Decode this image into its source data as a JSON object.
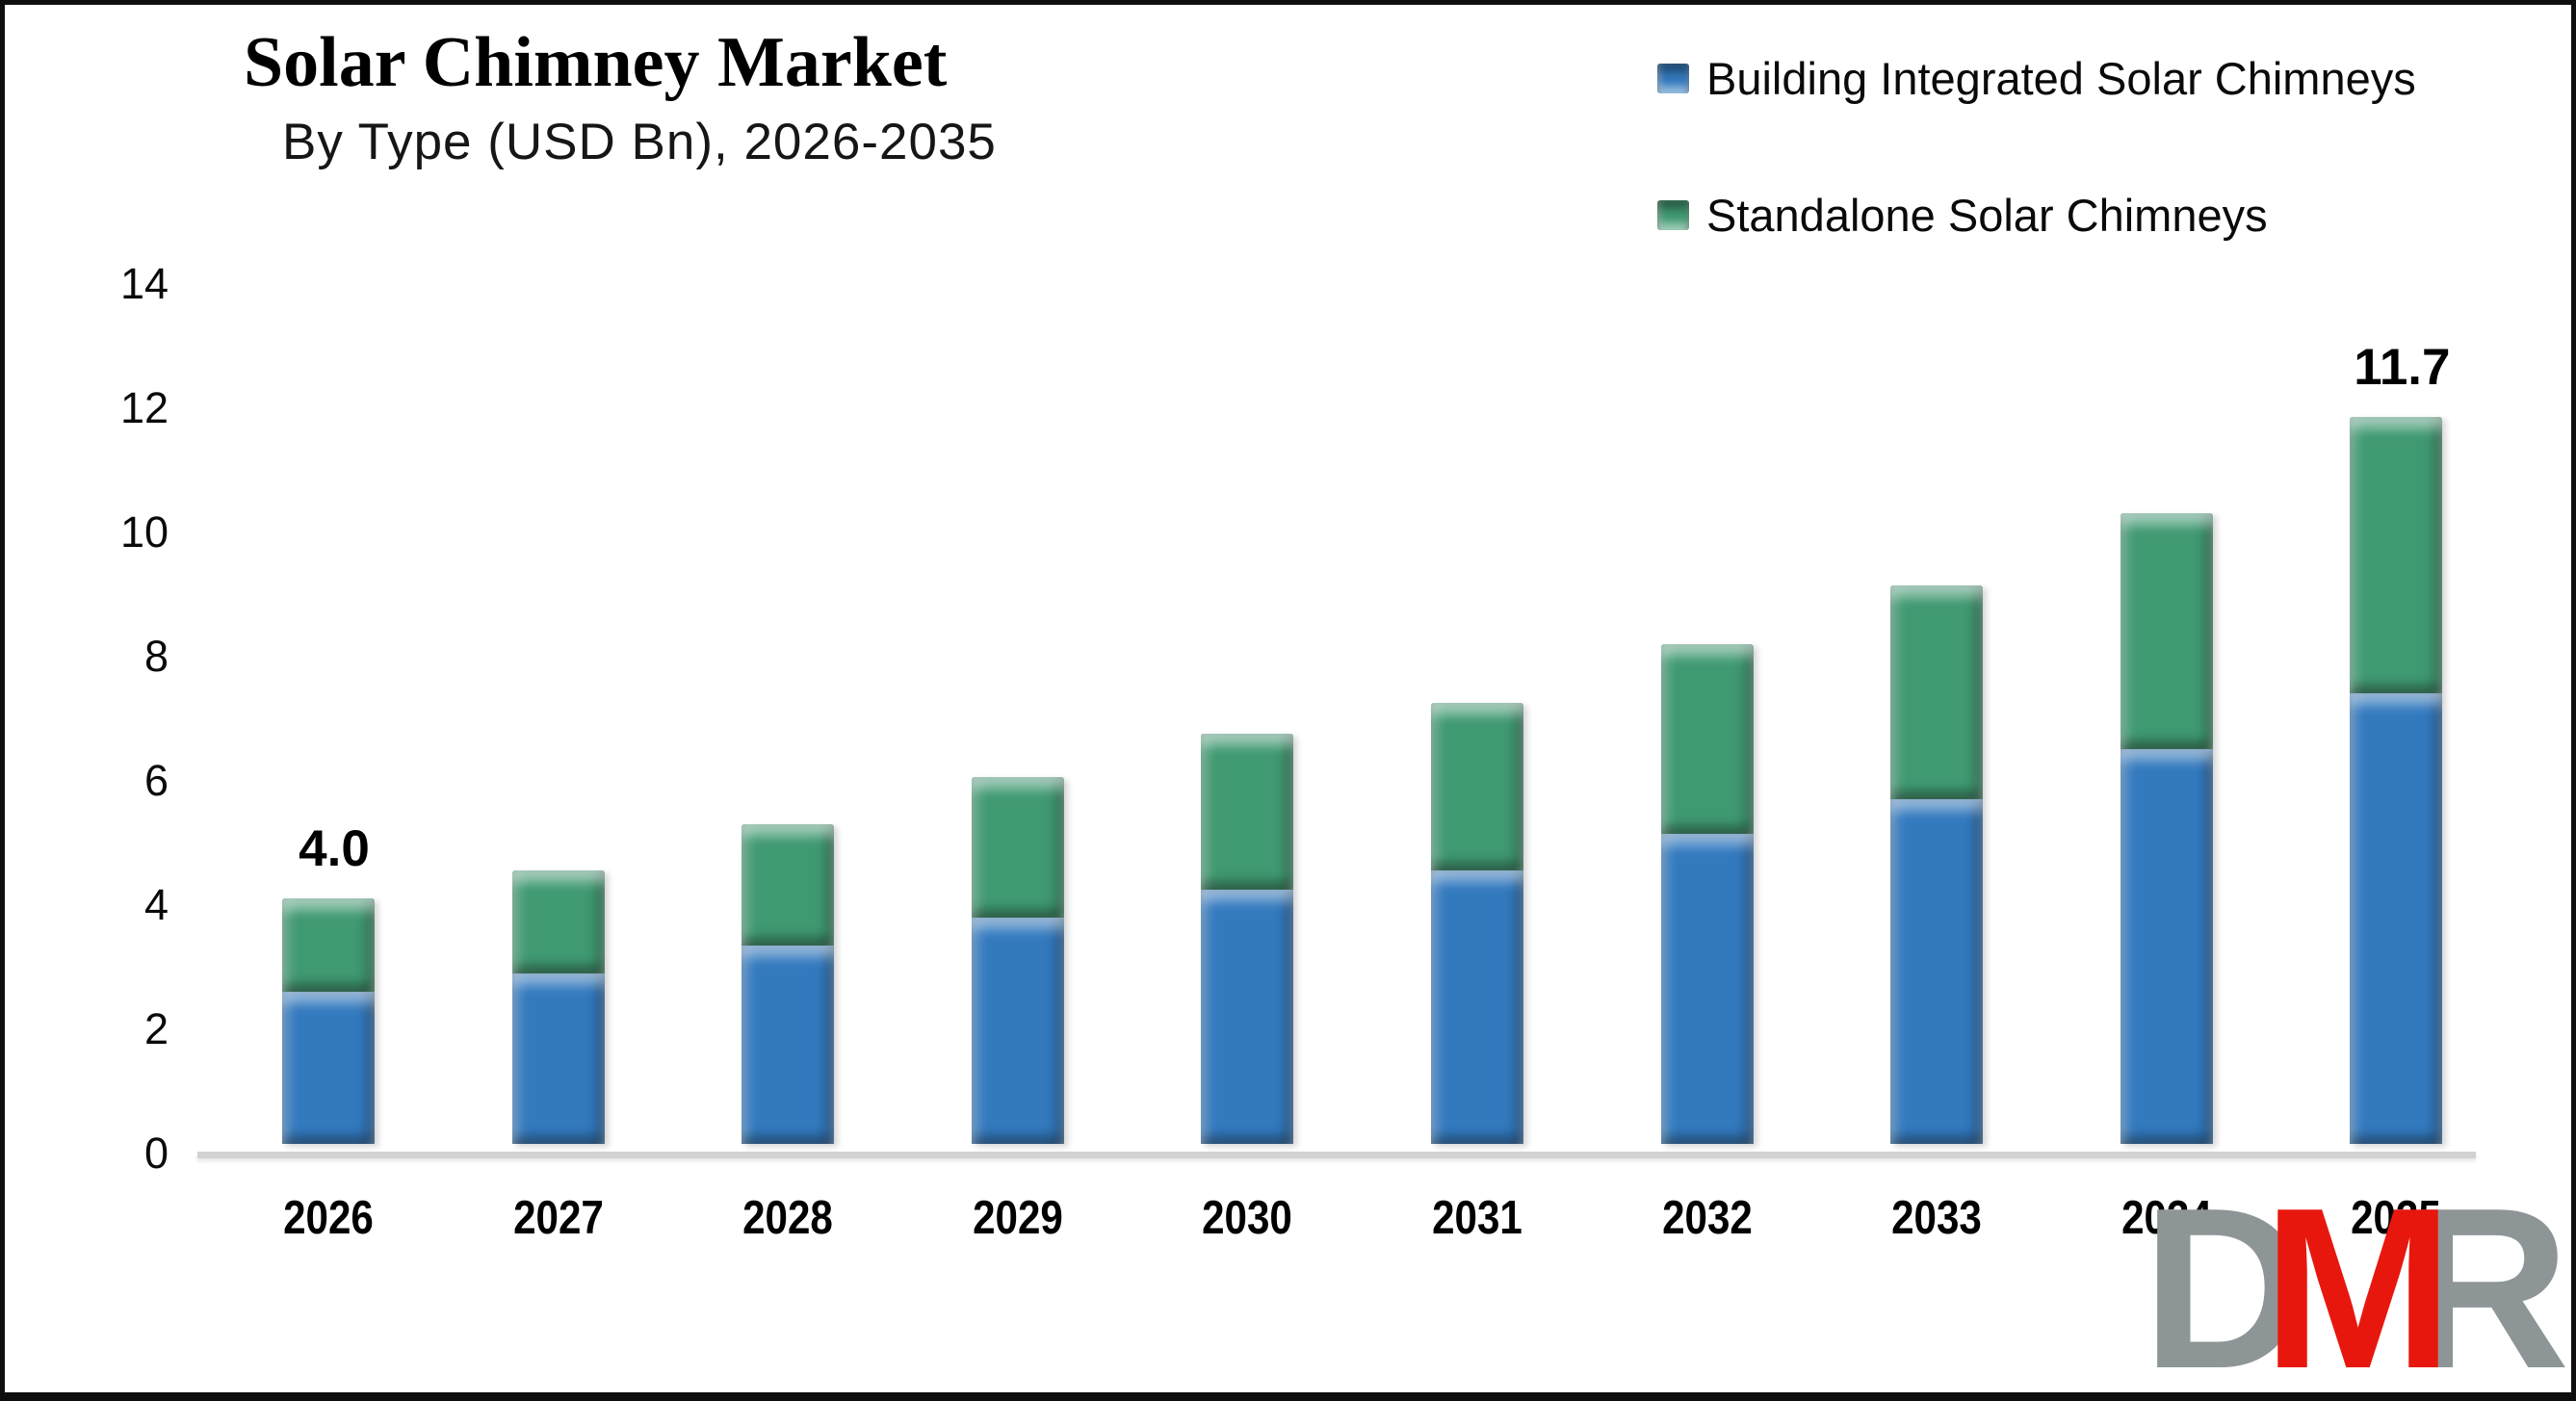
{
  "title": "Solar Chimney Market",
  "subtitle": "By Type (USD Bn), 2026-2035",
  "legend": {
    "items": [
      {
        "label": "Building Integrated Solar Chimneys",
        "color": "#3279BE"
      },
      {
        "label": "Standalone Solar Chimneys",
        "color": "#3F9971"
      }
    ]
  },
  "chart_data": {
    "type": "bar",
    "stacked": true,
    "categories": [
      "2026",
      "2027",
      "2028",
      "2029",
      "2030",
      "2031",
      "2032",
      "2033",
      "2034",
      "2035"
    ],
    "series": [
      {
        "name": "Building Integrated Solar Chimneys",
        "color": "#3279BE",
        "values": [
          2.45,
          2.75,
          3.2,
          3.65,
          4.1,
          4.4,
          5.0,
          5.55,
          6.35,
          7.25
        ]
      },
      {
        "name": "Standalone Solar Chimneys",
        "color": "#3F9971",
        "values": [
          1.5,
          1.65,
          1.95,
          2.25,
          2.5,
          2.7,
          3.05,
          3.45,
          3.8,
          4.45
        ]
      }
    ],
    "totals": [
      3.95,
      4.4,
      5.15,
      5.9,
      6.6,
      7.1,
      8.05,
      9.0,
      10.15,
      11.7
    ],
    "data_labels": [
      {
        "category": "2026",
        "text": "4.0"
      },
      {
        "category": "2035",
        "text": "11.7"
      }
    ],
    "title": "Solar Chimney Market",
    "xlabel": "",
    "ylabel": "",
    "ylim": [
      0,
      14
    ],
    "yticks": [
      0,
      2,
      4,
      6,
      8,
      10,
      12,
      14
    ],
    "grid": false,
    "legend_position": "top-right"
  },
  "logo": {
    "letters": [
      {
        "char": "D",
        "color": "#8e9596"
      },
      {
        "char": "M",
        "color": "#e8170d"
      },
      {
        "char": "R",
        "color": "#8e9596"
      }
    ]
  }
}
